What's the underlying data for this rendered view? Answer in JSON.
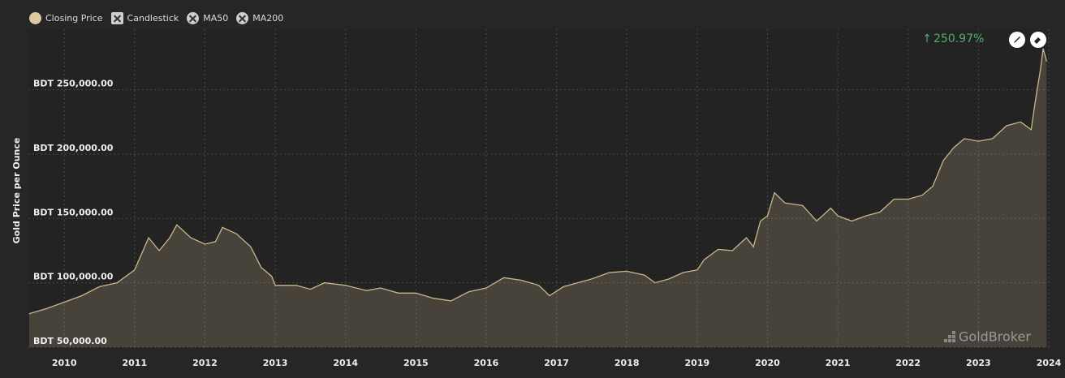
{
  "chart_data": {
    "type": "area",
    "y_label": "Gold Price per Ounce",
    "annotation": "250.97%",
    "watermark": "GoldBroker",
    "legend_toggles": [
      "Candlestick",
      "MA50",
      "MA200"
    ],
    "grid": true,
    "xlim": [
      2009.49,
      2024.0
    ],
    "xticks": [
      2010,
      2011,
      2012,
      2013,
      2014,
      2015,
      2016,
      2017,
      2018,
      2019,
      2020,
      2021,
      2022,
      2023,
      2024
    ],
    "ylim": [
      50000,
      297000
    ],
    "yticks": [
      {
        "value": 50000,
        "label": "BDT 50,000.00"
      },
      {
        "value": 100000,
        "label": "BDT 100,000.00"
      },
      {
        "value": 150000,
        "label": "BDT 150,000.00"
      },
      {
        "value": 200000,
        "label": "BDT 200,000.00"
      },
      {
        "value": 250000,
        "label": "BDT 250,000.00"
      }
    ],
    "x": [
      2009.5,
      2009.75,
      2010,
      2010.25,
      2010.5,
      2010.75,
      2011,
      2011.2,
      2011.35,
      2011.5,
      2011.6,
      2011.8,
      2012,
      2012.15,
      2012.25,
      2012.45,
      2012.65,
      2012.8,
      2012.95,
      2013.0,
      2013.3,
      2013.5,
      2013.7,
      2014,
      2014.3,
      2014.5,
      2014.75,
      2015,
      2015.25,
      2015.5,
      2015.75,
      2016,
      2016.25,
      2016.5,
      2016.75,
      2016.9,
      2017.1,
      2017.3,
      2017.5,
      2017.75,
      2018,
      2018.25,
      2018.4,
      2018.6,
      2018.8,
      2019,
      2019.1,
      2019.3,
      2019.5,
      2019.7,
      2019.8,
      2019.9,
      2020.0,
      2020.1,
      2020.25,
      2020.5,
      2020.7,
      2020.9,
      2021,
      2021.2,
      2021.4,
      2021.6,
      2021.8,
      2022,
      2022.2,
      2022.35,
      2022.5,
      2022.65,
      2022.8,
      2023,
      2023.2,
      2023.4,
      2023.6,
      2023.75,
      2023.82,
      2023.88,
      2023.92,
      2023.97
    ],
    "series": [
      {
        "name": "Closing Price",
        "color": "#cbb68b",
        "values": [
          76000,
          80000,
          85000,
          90000,
          97000,
          100000,
          110000,
          135000,
          125000,
          135000,
          145000,
          135000,
          130000,
          132000,
          143000,
          138000,
          128000,
          112000,
          105000,
          98000,
          98000,
          95000,
          100000,
          98000,
          94000,
          96000,
          92000,
          92000,
          88000,
          86000,
          93000,
          96000,
          104000,
          102000,
          98000,
          90000,
          97000,
          100000,
          103000,
          108000,
          109000,
          106000,
          100000,
          103000,
          108000,
          110000,
          118000,
          126000,
          125000,
          135000,
          128000,
          148000,
          152000,
          170000,
          162000,
          160000,
          148000,
          158000,
          152000,
          148000,
          152000,
          155000,
          165000,
          165000,
          168000,
          175000,
          195000,
          205000,
          212000,
          210000,
          212000,
          222000,
          225000,
          219000,
          245000,
          265000,
          282000,
          272000
        ]
      }
    ]
  }
}
